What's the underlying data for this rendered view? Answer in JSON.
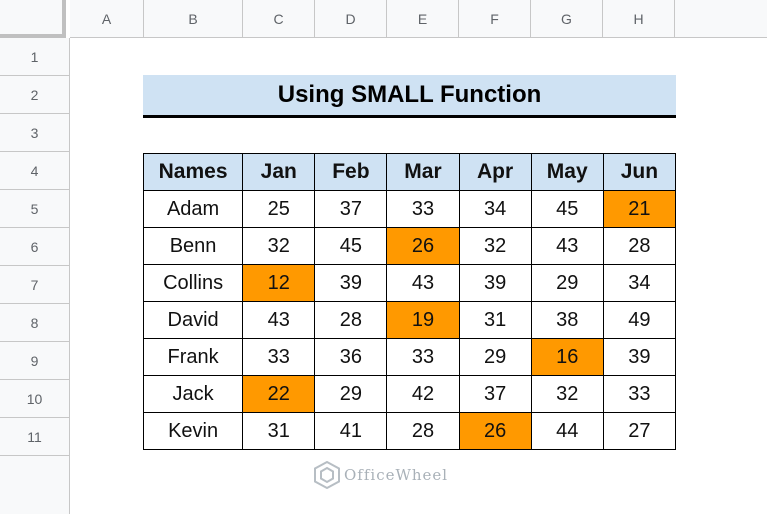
{
  "columns": [
    "A",
    "B",
    "C",
    "D",
    "E",
    "F",
    "G",
    "H"
  ],
  "rows": [
    "1",
    "2",
    "3",
    "4",
    "5",
    "6",
    "7",
    "8",
    "9",
    "10",
    "11"
  ],
  "title": "Using SMALL Function",
  "table": {
    "headers": [
      "Names",
      "Jan",
      "Feb",
      "Mar",
      "Apr",
      "May",
      "Jun"
    ],
    "rows": [
      {
        "name": "Adam",
        "values": [
          "25",
          "37",
          "33",
          "34",
          "45",
          "21"
        ],
        "highlight": 5
      },
      {
        "name": "Benn",
        "values": [
          "32",
          "45",
          "26",
          "32",
          "43",
          "28"
        ],
        "highlight": 2
      },
      {
        "name": "Collins",
        "values": [
          "12",
          "39",
          "43",
          "39",
          "29",
          "34"
        ],
        "highlight": 0
      },
      {
        "name": "David",
        "values": [
          "43",
          "28",
          "19",
          "31",
          "38",
          "49"
        ],
        "highlight": 2
      },
      {
        "name": "Frank",
        "values": [
          "33",
          "36",
          "33",
          "29",
          "16",
          "39"
        ],
        "highlight": 4
      },
      {
        "name": "Jack",
        "values": [
          "22",
          "29",
          "42",
          "37",
          "32",
          "33"
        ],
        "highlight": 0
      },
      {
        "name": "Kevin",
        "values": [
          "31",
          "41",
          "28",
          "26",
          "44",
          "27"
        ],
        "highlight": 3
      }
    ]
  },
  "highlight_color": "#ff9900",
  "header_fill_color": "#cfe2f3",
  "watermark": {
    "text": "OfficeWheel",
    "icon": "officewheel-logo-icon"
  }
}
